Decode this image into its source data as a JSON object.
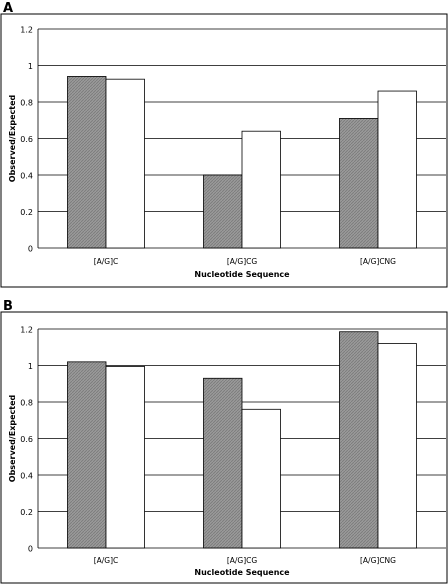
{
  "chart_data": [
    {
      "panel": "A",
      "type": "bar",
      "categories": [
        "[A/G]C",
        "[A/G]CG",
        "[A/G]CNG"
      ],
      "series": [
        {
          "values": [
            0.94,
            0.4,
            0.71
          ],
          "fill": "#9a9a9a",
          "pattern": "hatched"
        },
        {
          "values": [
            0.925,
            0.64,
            0.86
          ],
          "fill": "#ffffff",
          "pattern": "solid"
        }
      ],
      "xlabel": "Nucleotide Sequence",
      "ylabel": "Observed/Expected",
      "ylim": [
        0,
        1.2
      ],
      "yticks": [
        0,
        0.2,
        0.4,
        0.6,
        0.8,
        1,
        1.2
      ],
      "ytick_labels": [
        "0",
        "0.2",
        "0.4",
        "0.6",
        "0.8",
        "1",
        "1.2"
      ],
      "grid": true
    },
    {
      "panel": "B",
      "type": "bar",
      "categories": [
        "[A/G]C",
        "[A/G]CG",
        "[A/G]CNG"
      ],
      "series": [
        {
          "values": [
            1.02,
            0.93,
            1.185
          ],
          "fill": "#9a9a9a",
          "pattern": "hatched"
        },
        {
          "values": [
            0.995,
            0.76,
            1.12
          ],
          "fill": "#ffffff",
          "pattern": "solid"
        }
      ],
      "xlabel": "Nucleotide Sequence",
      "ylabel": "Observed/Expected",
      "ylim": [
        0,
        1.2
      ],
      "yticks": [
        0,
        0.2,
        0.4,
        0.6,
        0.8,
        1,
        1.2
      ],
      "ytick_labels": [
        "0",
        "0.2",
        "0.4",
        "0.6",
        "0.8",
        "1",
        "1.2"
      ],
      "grid": true
    }
  ]
}
